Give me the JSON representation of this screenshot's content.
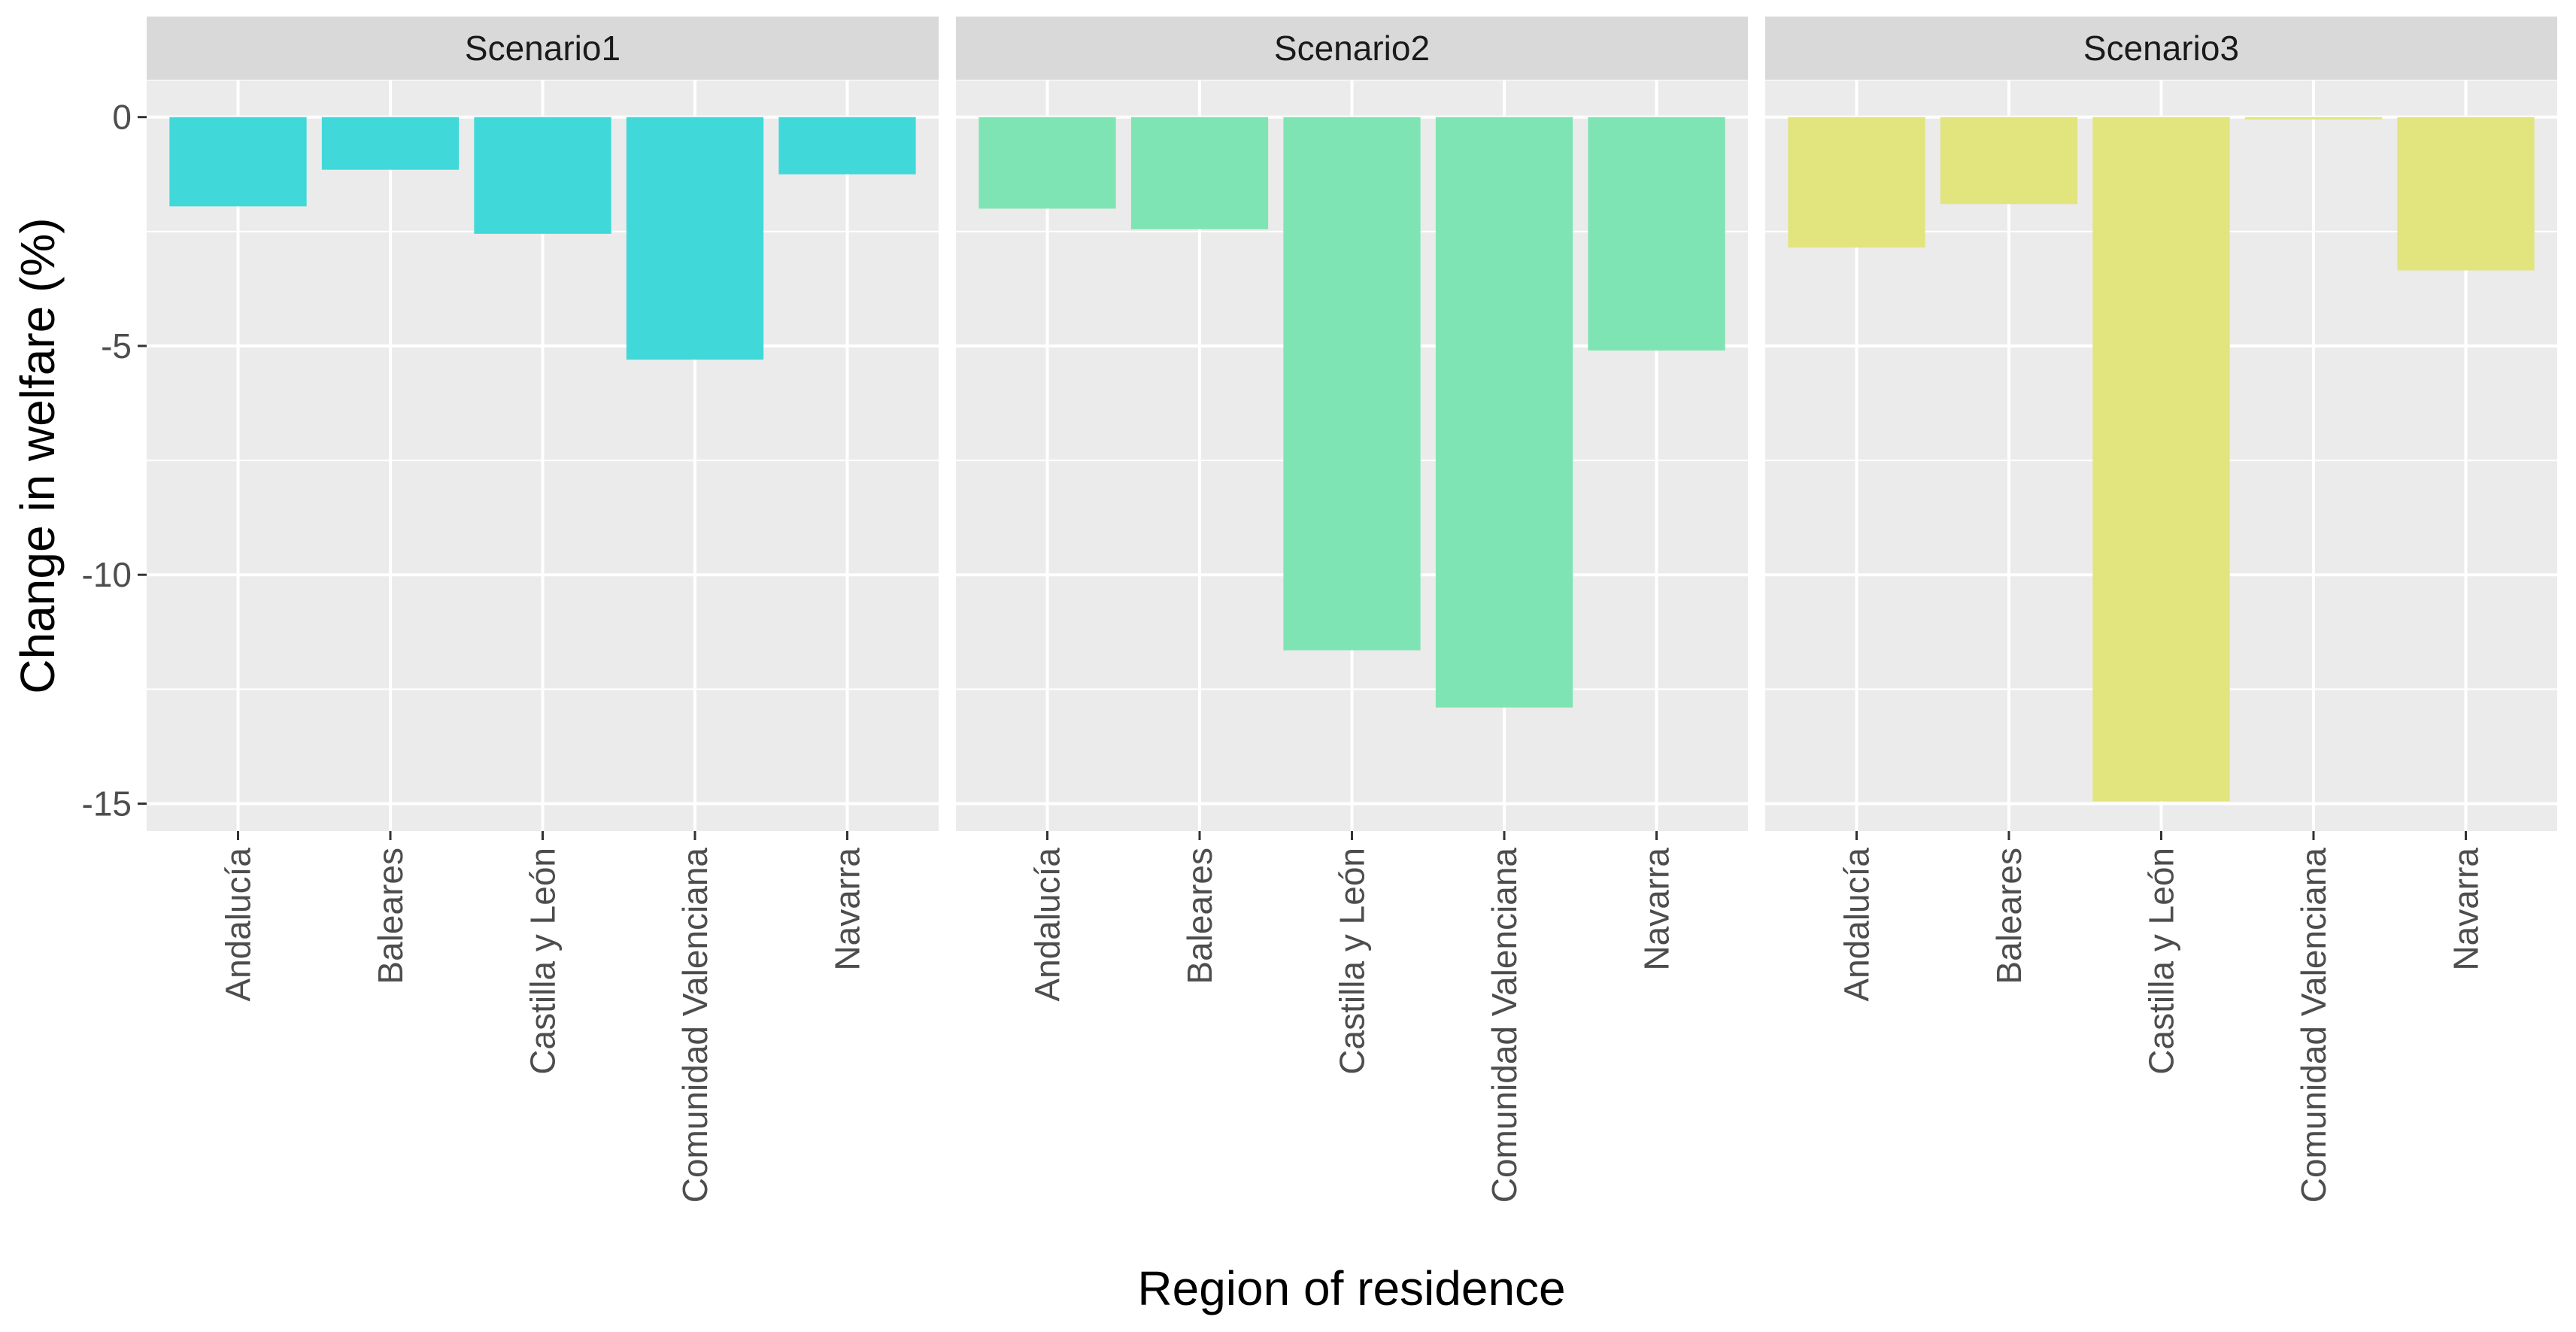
{
  "chart_data": {
    "type": "bar",
    "xlabel": "Region of residence",
    "ylabel": "Change in welfare (%)",
    "categories": [
      "Andalucía",
      "Baleares",
      "Castilla y León",
      "Comunidad Valenciana",
      "Navarra"
    ],
    "ylim": [
      -15.6,
      0.8
    ],
    "yticks": [
      0,
      -5,
      -10,
      -15
    ],
    "ytick_labels": [
      "0",
      "-5",
      "-10",
      "-15"
    ],
    "grid": true,
    "legend": "none",
    "facets": [
      {
        "name": "Scenario1",
        "color": "#40D8D9",
        "values": [
          -1.95,
          -1.15,
          -2.55,
          -5.3,
          -1.25
        ]
      },
      {
        "name": "Scenario2",
        "color": "#7FE4B3",
        "values": [
          -2.0,
          -2.45,
          -11.65,
          -12.9,
          -5.1
        ]
      },
      {
        "name": "Scenario3",
        "color": "#E2E47E",
        "values": [
          -2.85,
          -1.9,
          -14.95,
          -0.05,
          -3.35
        ]
      }
    ],
    "panel_background": "#EBEBEB",
    "strip_background": "#D9D9D9",
    "gridline_color": "#FFFFFF"
  }
}
